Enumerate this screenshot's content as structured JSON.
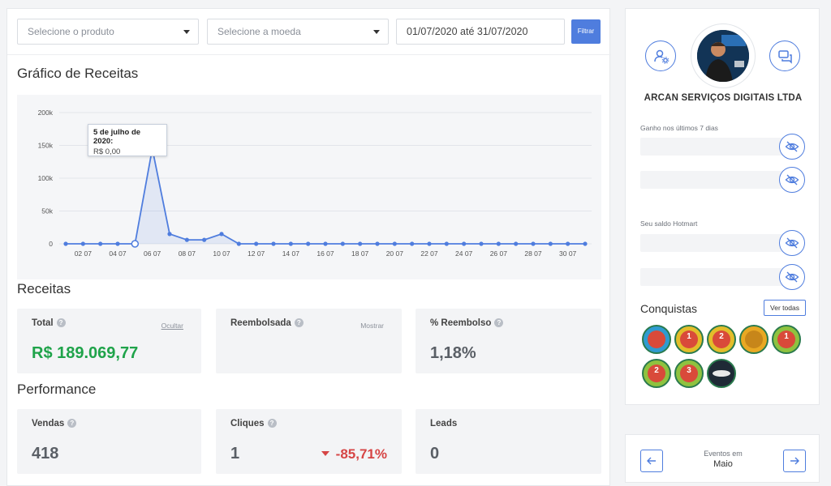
{
  "filters": {
    "product_placeholder": "Selecione o produto",
    "currency_placeholder": "Selecione a moeda",
    "date_range": "01/07/2020 até 31/07/2020",
    "filter_button": "Filtrar"
  },
  "revenue_chart": {
    "title": "Gráfico de Receitas",
    "tooltip_title": "5 de julho de 2020:",
    "tooltip_value": "R$ 0,00"
  },
  "chart_data": {
    "type": "line",
    "x": [
      "01 07",
      "02 07",
      "03 07",
      "04 07",
      "05 07",
      "06 07",
      "07 07",
      "08 07",
      "09 07",
      "10 07",
      "11 07",
      "12 07",
      "13 07",
      "14 07",
      "15 07",
      "16 07",
      "17 07",
      "18 07",
      "19 07",
      "20 07",
      "21 07",
      "22 07",
      "23 07",
      "24 07",
      "25 07",
      "26 07",
      "27 07",
      "28 07",
      "29 07",
      "30 07",
      "31 07"
    ],
    "tick_labels": [
      "02 07",
      "04 07",
      "06 07",
      "08 07",
      "10 07",
      "12 07",
      "14 07",
      "16 07",
      "18 07",
      "20 07",
      "22 07",
      "24 07",
      "26 07",
      "28 07",
      "30 07"
    ],
    "y_tick_labels": [
      "0",
      "50k",
      "100k",
      "150k",
      "200k"
    ],
    "series": [
      {
        "values": [
          0,
          0,
          0,
          0,
          0,
          145000,
          15000,
          6000,
          6000,
          15000,
          0,
          0,
          0,
          0,
          0,
          0,
          0,
          0,
          0,
          0,
          0,
          0,
          0,
          0,
          0,
          0,
          0,
          0,
          0,
          0,
          0
        ]
      }
    ],
    "ylim": [
      0,
      200000
    ],
    "grid": true,
    "color": "#4f7dde"
  },
  "receitas": {
    "title": "Receitas",
    "total_label": "Total",
    "total_toggle": "Ocultar",
    "total_value": "R$ 189.069,77",
    "refunded_label": "Reembolsada",
    "refunded_toggle": "Mostrar",
    "refund_pct_label": "% Reembolso",
    "refund_pct_value": "1,18%"
  },
  "performance": {
    "title": "Performance",
    "sales_label": "Vendas",
    "sales_value": "418",
    "clicks_label": "Cliques",
    "clicks_value": "1",
    "clicks_delta": "-85,71%",
    "leads_label": "Leads",
    "leads_value": "0"
  },
  "profile": {
    "company": "ARCAN SERVIÇOS DIGITAIS LTDA",
    "gain_label": "Ganho nos últimos 7 dias",
    "balance_label": "Seu saldo Hotmart",
    "achievements_title": "Conquistas",
    "achievements_button": "Ver todas",
    "badge_numbers": [
      "",
      "1",
      "2",
      "",
      "1",
      "2",
      "3",
      ""
    ]
  },
  "events": {
    "label": "Eventos em",
    "month": "Maio"
  },
  "colors": {
    "accent": "#4f7dde",
    "positive": "#1fa34a",
    "negative": "#d64545"
  }
}
